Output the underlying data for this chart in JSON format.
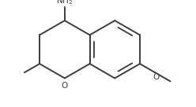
{
  "bg_color": "#ffffff",
  "line_color": "#3d3d3d",
  "text_color": "#3d3d3d",
  "linewidth": 1.4,
  "figsize": [
    2.48,
    1.36
  ],
  "dpi": 100,
  "xlim": [
    -0.65,
    0.85
  ],
  "ylim": [
    -0.52,
    0.52
  ],
  "nh2_fontsize": 7.5,
  "o_fontsize": 7.5
}
